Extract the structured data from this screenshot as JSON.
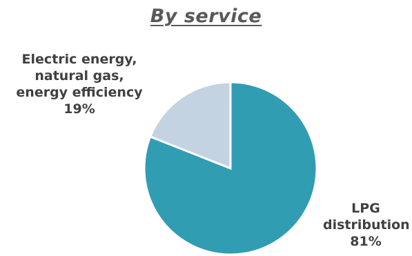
{
  "chart_data": {
    "type": "pie",
    "title": "By service",
    "slices": [
      {
        "label_lines": [
          "LPG",
          "distribution"
        ],
        "value": 81,
        "value_label": "81%",
        "color": "#319db3"
      },
      {
        "label_lines": [
          "Electric energy,",
          "natural gas,",
          "energy efficiency"
        ],
        "value": 19,
        "value_label": "19%",
        "color": "#c3d3e2"
      }
    ],
    "slice_border_color": "#ffffff"
  }
}
